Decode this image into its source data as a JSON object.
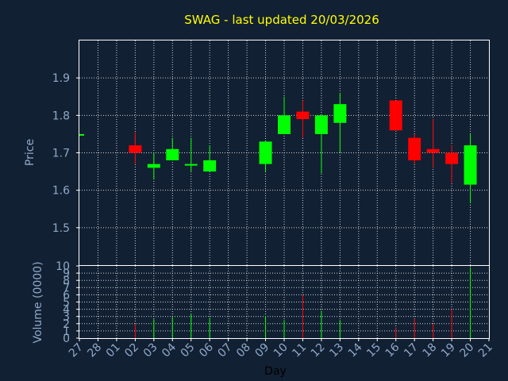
{
  "chart_data": [
    {
      "type": "candlestick",
      "title": "SWAG - last updated 20/03/2026",
      "ylabel": "Price",
      "xlabel": "Day",
      "ylim": [
        1.4,
        2.0
      ],
      "yticks": [
        1.5,
        1.6,
        1.7,
        1.8,
        1.9
      ],
      "grid": true,
      "colors": {
        "up": "#00ff00",
        "down": "#ff0000"
      },
      "categories": [
        "27",
        "28",
        "01",
        "02",
        "03",
        "04",
        "05",
        "06",
        "07",
        "08",
        "09",
        "10",
        "11",
        "12",
        "13",
        "14",
        "15",
        "16",
        "17",
        "18",
        "19",
        "20",
        "21"
      ],
      "candles": [
        {
          "day": "27",
          "open": 1.75,
          "high": 1.75,
          "low": 1.75,
          "close": 1.75
        },
        {
          "day": "02",
          "open": 1.72,
          "high": 1.755,
          "low": 1.67,
          "close": 1.7
        },
        {
          "day": "03",
          "open": 1.66,
          "high": 1.7,
          "low": 1.63,
          "close": 1.67
        },
        {
          "day": "04",
          "open": 1.68,
          "high": 1.74,
          "low": 1.68,
          "close": 1.71
        },
        {
          "day": "05",
          "open": 1.67,
          "high": 1.74,
          "low": 1.65,
          "close": 1.67
        },
        {
          "day": "06",
          "open": 1.65,
          "high": 1.72,
          "low": 1.65,
          "close": 1.68
        },
        {
          "day": "09",
          "open": 1.67,
          "high": 1.73,
          "low": 1.65,
          "close": 1.73
        },
        {
          "day": "10",
          "open": 1.75,
          "high": 1.85,
          "low": 1.75,
          "close": 1.8
        },
        {
          "day": "11",
          "open": 1.81,
          "high": 1.84,
          "low": 1.74,
          "close": 1.79
        },
        {
          "day": "12",
          "open": 1.75,
          "high": 1.8,
          "low": 1.645,
          "close": 1.8
        },
        {
          "day": "13",
          "open": 1.78,
          "high": 1.86,
          "low": 1.7,
          "close": 1.83
        },
        {
          "day": "16",
          "open": 1.84,
          "high": 1.84,
          "low": 1.76,
          "close": 1.76
        },
        {
          "day": "17",
          "open": 1.74,
          "high": 1.75,
          "low": 1.67,
          "close": 1.68
        },
        {
          "day": "18",
          "open": 1.71,
          "high": 1.79,
          "low": 1.66,
          "close": 1.7
        },
        {
          "day": "19",
          "open": 1.7,
          "high": 1.72,
          "low": 1.62,
          "close": 1.67
        },
        {
          "day": "20",
          "open": 1.615,
          "high": 1.75,
          "low": 1.565,
          "close": 1.72
        }
      ]
    },
    {
      "type": "bar",
      "ylabel": "Volume (0000)",
      "xlabel": "Day",
      "ylim": [
        0,
        10
      ],
      "yticks": [
        0,
        1,
        2,
        3,
        4,
        5,
        6,
        7,
        8,
        9,
        10
      ],
      "grid": true,
      "categories": [
        "27",
        "28",
        "01",
        "02",
        "03",
        "04",
        "05",
        "06",
        "07",
        "08",
        "09",
        "10",
        "11",
        "12",
        "13",
        "14",
        "15",
        "16",
        "17",
        "18",
        "19",
        "20",
        "21"
      ],
      "volumes": [
        {
          "day": "02",
          "value": 2.0,
          "direction": "down"
        },
        {
          "day": "03",
          "value": 2.6,
          "direction": "up"
        },
        {
          "day": "04",
          "value": 2.9,
          "direction": "up"
        },
        {
          "day": "05",
          "value": 3.4,
          "direction": "up"
        },
        {
          "day": "06",
          "value": 2.8,
          "direction": "up"
        },
        {
          "day": "09",
          "value": 3.1,
          "direction": "up"
        },
        {
          "day": "10",
          "value": 2.5,
          "direction": "up"
        },
        {
          "day": "11",
          "value": 6.0,
          "direction": "down"
        },
        {
          "day": "12",
          "value": 3.8,
          "direction": "up"
        },
        {
          "day": "13",
          "value": 2.5,
          "direction": "up"
        },
        {
          "day": "16",
          "value": 1.5,
          "direction": "down"
        },
        {
          "day": "17",
          "value": 2.7,
          "direction": "down"
        },
        {
          "day": "18",
          "value": 2.0,
          "direction": "down"
        },
        {
          "day": "19",
          "value": 4.0,
          "direction": "down"
        },
        {
          "day": "20",
          "value": 9.8,
          "direction": "up"
        }
      ]
    }
  ]
}
